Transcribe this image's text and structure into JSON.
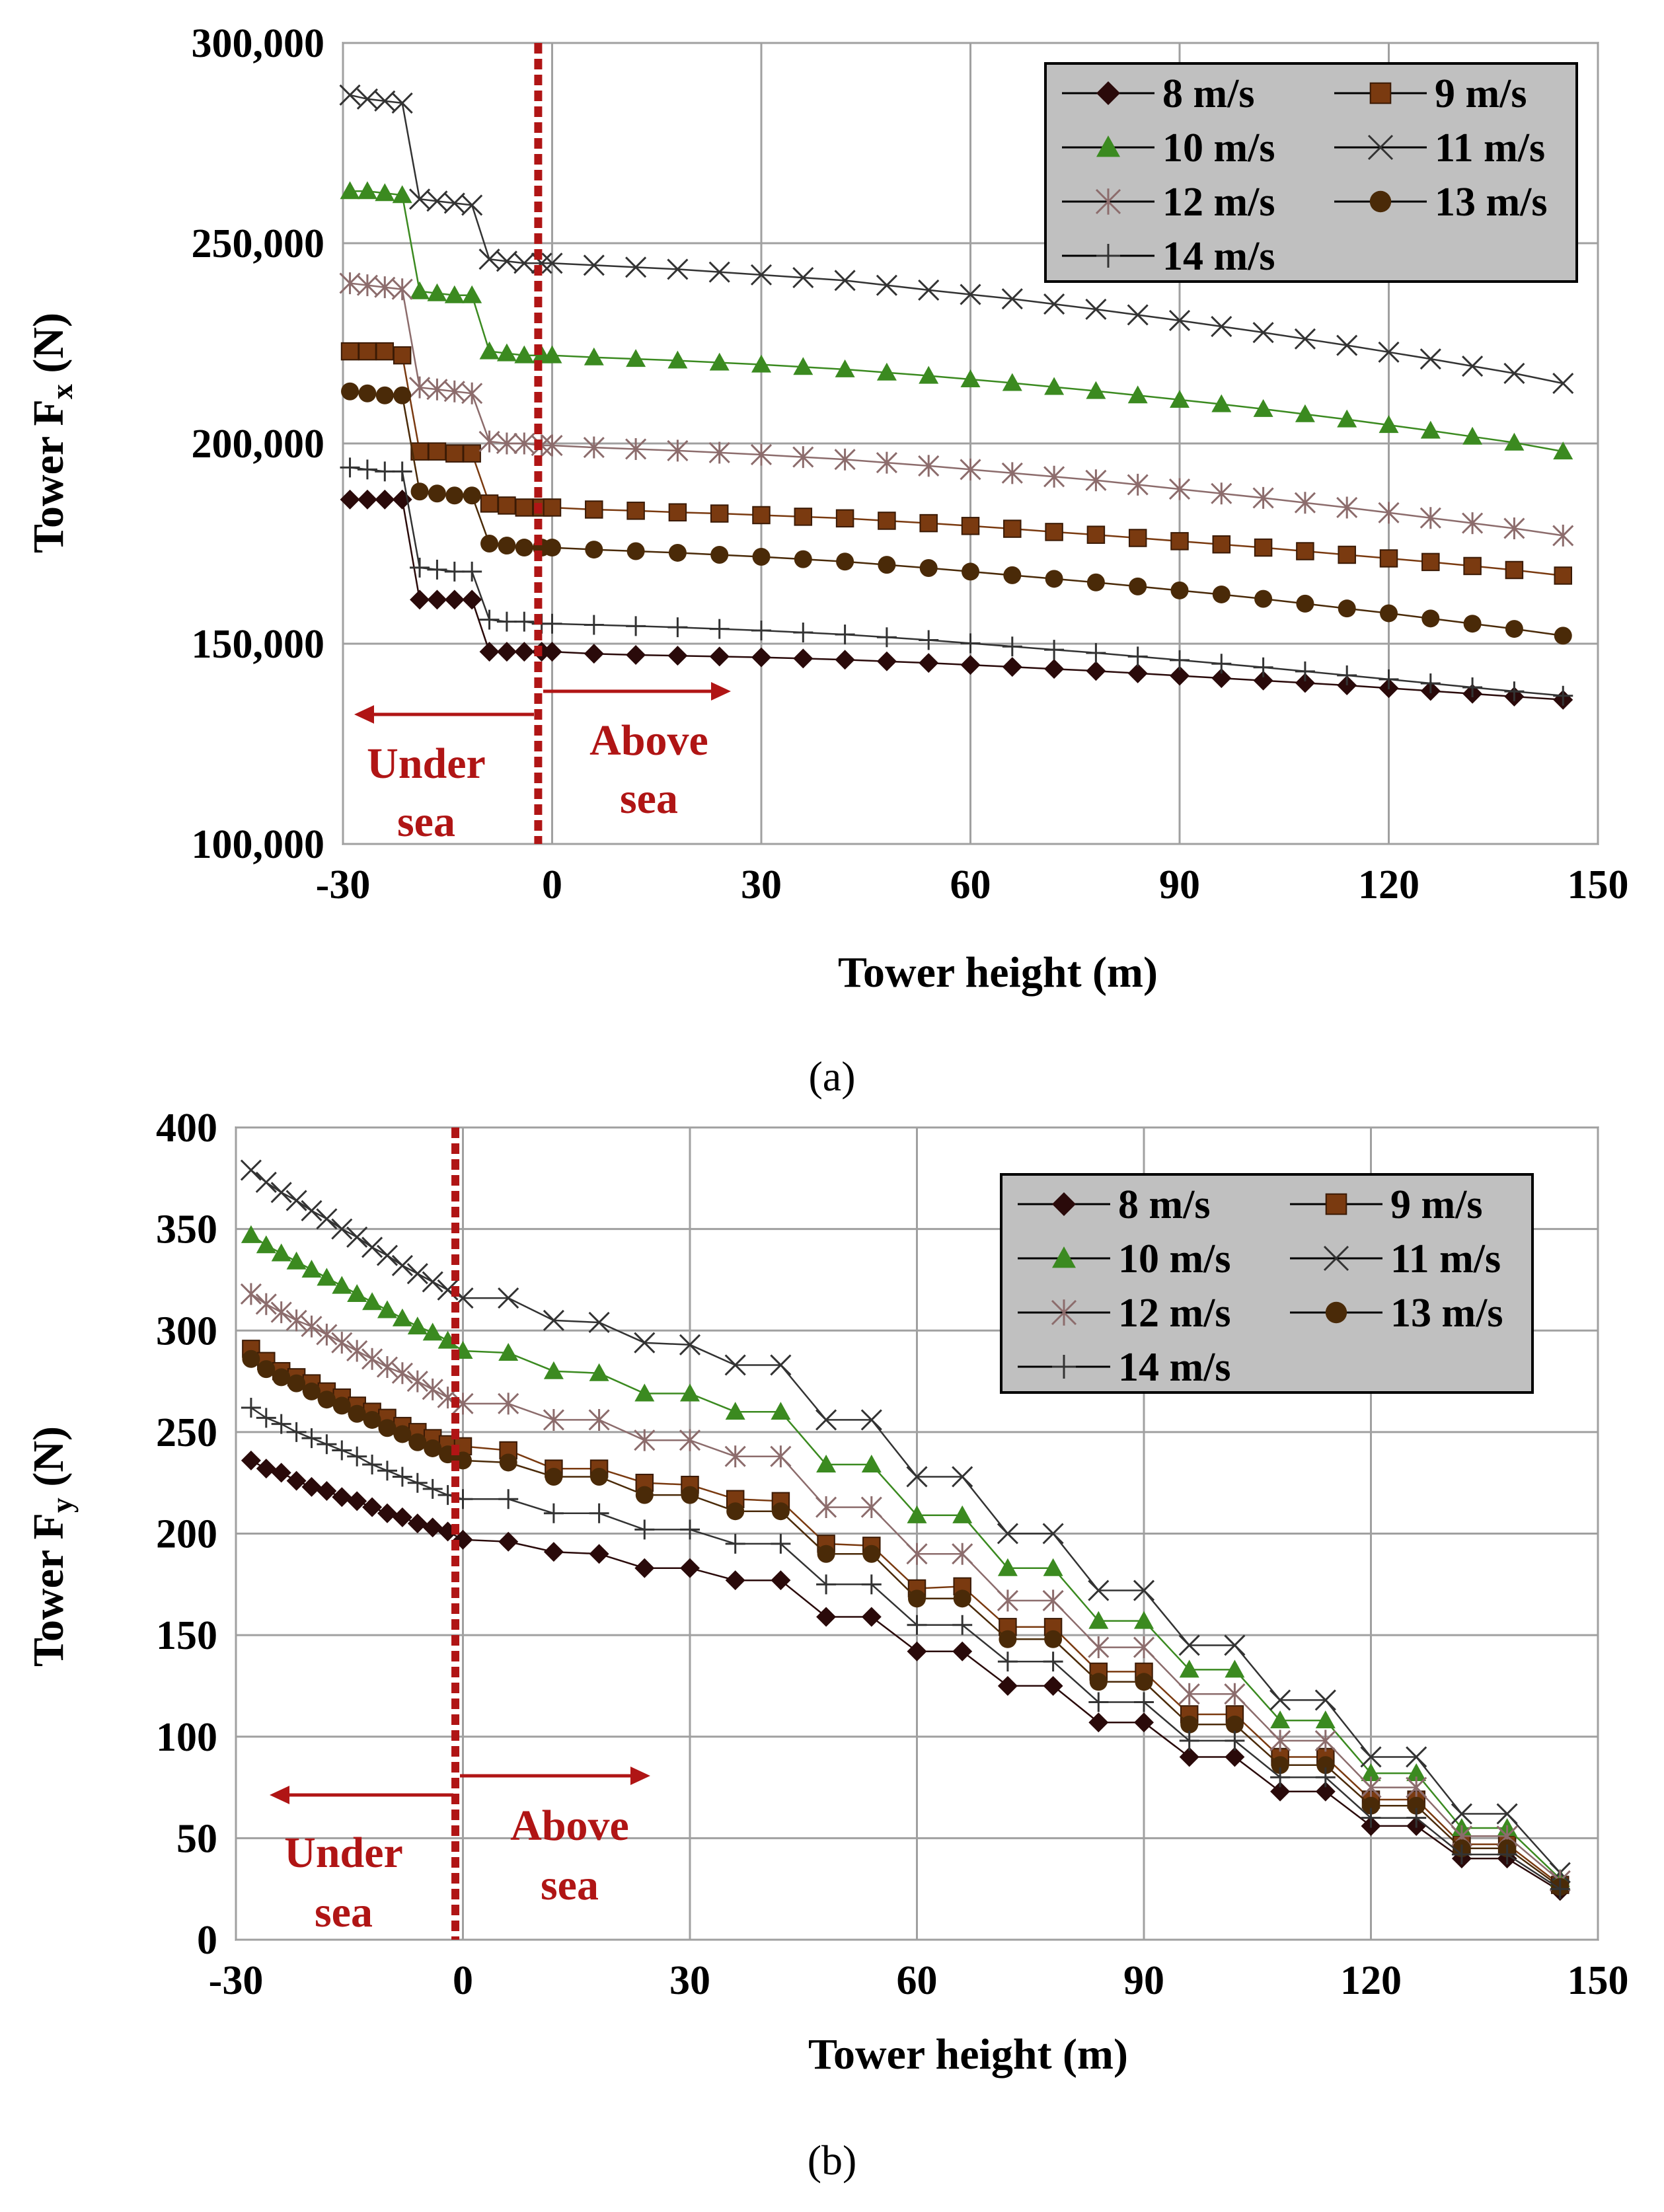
{
  "captions": {
    "a": "(a)",
    "b": "(b)"
  },
  "styles": {
    "8 m/s": {
      "color": "#2a0a0a",
      "marker": "diamond",
      "marker_name": "diamond-marker"
    },
    "9 m/s": {
      "color": "#7a3a10",
      "marker": "square",
      "marker_name": "square-marker"
    },
    "10 m/s": {
      "color": "#3b8a20",
      "marker": "triangle",
      "marker_name": "triangle-marker"
    },
    "11 m/s": {
      "color": "#333333",
      "marker": "x",
      "marker_name": "x-marker"
    },
    "12 m/s": {
      "color": "#8c6c6c",
      "marker": "star",
      "marker_name": "star-marker"
    },
    "13 m/s": {
      "color": "#4a2a08",
      "marker": "circle",
      "marker_name": "circle-marker"
    },
    "14 m/s": {
      "color": "#333333",
      "marker": "plus",
      "marker_name": "plus-marker"
    }
  },
  "chart_data": [
    {
      "id": "a",
      "type": "line",
      "title": "",
      "xlabel": "Tower height (m)",
      "ylabel": "Tower F",
      "ylabel_sub": "x",
      "ylabel_unit": " (N)",
      "xlim": [
        -30,
        150
      ],
      "ylim": [
        100000,
        300000
      ],
      "xticks": [
        -30,
        0,
        30,
        60,
        90,
        120,
        150
      ],
      "xtick_labels": [
        "-30",
        "0",
        "30",
        "60",
        "90",
        "120",
        "150"
      ],
      "yticks": [
        100000,
        150000,
        200000,
        250000,
        300000
      ],
      "ytick_labels": [
        "100,000",
        "150,000",
        "200,000",
        "250,000",
        "300,000"
      ],
      "grid": true,
      "legend_position": "top-right",
      "divider_x": -2,
      "annotations": {
        "under_line1": "Under",
        "under_line2": "sea",
        "above_line1": "Above",
        "above_line2": "sea"
      },
      "x": [
        -29,
        -26.5,
        -24,
        -21.5,
        -19,
        -16.5,
        -14,
        -11.5,
        -9,
        -6.5,
        -4,
        -1.5,
        0,
        6,
        12,
        18,
        24,
        30,
        36,
        42,
        48,
        54,
        60,
        66,
        72,
        78,
        84,
        90,
        96,
        102,
        108,
        114,
        120,
        126,
        132,
        138,
        145
      ],
      "series": [
        {
          "name": "8 m/s",
          "values": [
            186000,
            186000,
            186000,
            186000,
            161000,
            161000,
            161000,
            161000,
            148000,
            148000,
            148000,
            148000,
            148000,
            147500,
            147200,
            147000,
            146800,
            146600,
            146300,
            146000,
            145600,
            145200,
            144700,
            144200,
            143700,
            143200,
            142600,
            142000,
            141400,
            140800,
            140200,
            139600,
            138900,
            138200,
            137500,
            136800,
            136000
          ]
        },
        {
          "name": "9 m/s",
          "values": [
            223000,
            223000,
            223000,
            222000,
            198000,
            198000,
            197500,
            197500,
            185000,
            184500,
            184000,
            184000,
            184000,
            183500,
            183200,
            182800,
            182500,
            182100,
            181700,
            181300,
            180700,
            180100,
            179400,
            178700,
            177900,
            177200,
            176400,
            175600,
            174800,
            174000,
            173100,
            172200,
            171300,
            170400,
            169400,
            168400,
            167000
          ]
        },
        {
          "name": "10 m/s",
          "values": [
            263000,
            263000,
            262500,
            262000,
            238000,
            237500,
            237000,
            237000,
            223000,
            222500,
            222000,
            222000,
            222000,
            221500,
            221100,
            220700,
            220200,
            219700,
            219100,
            218500,
            217700,
            216900,
            216000,
            215100,
            214100,
            213100,
            212000,
            210900,
            209800,
            208600,
            207300,
            206000,
            204600,
            203200,
            201700,
            200200,
            198000
          ]
        },
        {
          "name": "11 m/s",
          "values": [
            287000,
            286000,
            285500,
            285000,
            261000,
            260500,
            260000,
            259500,
            246000,
            245500,
            245000,
            245000,
            245000,
            244500,
            244000,
            243500,
            242800,
            242100,
            241400,
            240700,
            239500,
            238300,
            237200,
            236100,
            234800,
            233500,
            232100,
            230700,
            229200,
            227700,
            226100,
            224500,
            222800,
            221100,
            219300,
            217500,
            215000
          ]
        },
        {
          "name": "12 m/s",
          "values": [
            240000,
            239500,
            239000,
            238500,
            214000,
            213500,
            213000,
            212500,
            200500,
            200000,
            200000,
            199500,
            199500,
            199000,
            198600,
            198200,
            197700,
            197200,
            196600,
            196000,
            195200,
            194400,
            193500,
            192600,
            191700,
            190800,
            189700,
            188600,
            187500,
            186400,
            185200,
            184000,
            182700,
            181400,
            180100,
            178800,
            177000
          ]
        },
        {
          "name": "13 m/s",
          "values": [
            213000,
            212500,
            212000,
            212000,
            188000,
            187500,
            187000,
            187000,
            175000,
            174500,
            174000,
            174000,
            174000,
            173500,
            173100,
            172700,
            172200,
            171700,
            171100,
            170500,
            169700,
            168900,
            168000,
            167100,
            166200,
            165300,
            164300,
            163300,
            162300,
            161200,
            160000,
            158800,
            157600,
            156300,
            155000,
            153700,
            152000
          ]
        },
        {
          "name": "14 m/s",
          "values": [
            194000,
            193500,
            193000,
            193000,
            169000,
            168500,
            168000,
            168000,
            156000,
            155500,
            155500,
            155000,
            155000,
            154700,
            154400,
            154100,
            153700,
            153300,
            152800,
            152300,
            151600,
            150900,
            150100,
            149300,
            148500,
            147700,
            146800,
            145900,
            145000,
            144100,
            143100,
            142100,
            141100,
            140100,
            139100,
            138100,
            137000
          ]
        }
      ]
    },
    {
      "id": "b",
      "type": "line",
      "title": "",
      "xlabel": "Tower height (m)",
      "ylabel": "Tower F",
      "ylabel_sub": "y",
      "ylabel_unit": " (N)",
      "xlim": [
        -30,
        150
      ],
      "ylim": [
        0,
        400
      ],
      "xticks": [
        -30,
        0,
        30,
        60,
        90,
        120,
        150
      ],
      "xtick_labels": [
        "-30",
        "0",
        "30",
        "60",
        "90",
        "120",
        "150"
      ],
      "yticks": [
        0,
        50,
        100,
        150,
        200,
        250,
        300,
        350,
        400
      ],
      "ytick_labels": [
        "0",
        "50",
        "100",
        "150",
        "200",
        "250",
        "300",
        "350",
        "400"
      ],
      "grid": true,
      "legend_position": "top-right",
      "divider_x": -1,
      "annotations": {
        "under_line1": "Under",
        "under_line2": "sea",
        "above_line1": "Above",
        "above_line2": "sea"
      },
      "x": [
        -28,
        -26,
        -24,
        -22,
        -20,
        -18,
        -16,
        -14,
        -12,
        -10,
        -8,
        -6,
        -4,
        -2,
        0,
        6,
        12,
        18,
        24,
        30,
        36,
        42,
        48,
        54,
        60,
        66,
        72,
        78,
        84,
        90,
        96,
        102,
        108,
        114,
        120,
        126,
        132,
        138,
        145
      ],
      "series": [
        {
          "name": "8 m/s",
          "values": [
            236,
            232,
            230,
            226,
            223,
            221,
            218,
            216,
            213,
            210,
            208,
            205,
            203,
            201,
            197,
            196,
            191,
            190,
            183,
            183,
            177,
            177,
            159,
            159,
            142,
            142,
            125,
            125,
            107,
            107,
            90,
            90,
            73,
            73,
            56,
            56,
            40,
            40,
            24
          ]
        },
        {
          "name": "9 m/s",
          "values": [
            291,
            285,
            280,
            277,
            274,
            270,
            267,
            263,
            260,
            257,
            253,
            250,
            247,
            244,
            243,
            241,
            232,
            232,
            225,
            224,
            217,
            216,
            195,
            194,
            173,
            174,
            154,
            154,
            132,
            132,
            111,
            111,
            90,
            90,
            69,
            69,
            47,
            47,
            27
          ]
        },
        {
          "name": "10 m/s",
          "values": [
            347,
            342,
            338,
            334,
            330,
            326,
            322,
            318,
            314,
            310,
            306,
            302,
            299,
            295,
            290,
            289,
            280,
            279,
            269,
            269,
            260,
            260,
            234,
            234,
            209,
            209,
            183,
            183,
            157,
            157,
            133,
            133,
            108,
            108,
            82,
            82,
            55,
            55,
            30
          ]
        },
        {
          "name": "11 m/s",
          "values": [
            379,
            373,
            368,
            364,
            359,
            355,
            350,
            346,
            341,
            337,
            332,
            328,
            324,
            320,
            316,
            316,
            305,
            304,
            294,
            293,
            283,
            283,
            256,
            256,
            228,
            228,
            200,
            200,
            172,
            172,
            145,
            145,
            118,
            118,
            90,
            90,
            62,
            62,
            33
          ]
        },
        {
          "name": "12 m/s",
          "values": [
            318,
            313,
            309,
            305,
            302,
            298,
            294,
            290,
            286,
            282,
            279,
            275,
            271,
            267,
            264,
            264,
            256,
            256,
            246,
            246,
            238,
            238,
            213,
            213,
            190,
            190,
            167,
            167,
            144,
            144,
            121,
            121,
            98,
            98,
            75,
            75,
            51,
            51,
            29
          ]
        },
        {
          "name": "13 m/s",
          "values": [
            286,
            281,
            277,
            274,
            270,
            266,
            263,
            259,
            256,
            252,
            249,
            245,
            242,
            239,
            236,
            235,
            228,
            228,
            219,
            219,
            211,
            211,
            190,
            190,
            168,
            168,
            148,
            148,
            127,
            127,
            106,
            106,
            86,
            86,
            66,
            66,
            45,
            45,
            26
          ]
        },
        {
          "name": "14 m/s",
          "values": [
            262,
            257,
            254,
            250,
            247,
            244,
            241,
            238,
            234,
            231,
            228,
            225,
            222,
            219,
            217,
            217,
            210,
            210,
            202,
            202,
            195,
            195,
            175,
            175,
            155,
            155,
            137,
            137,
            117,
            117,
            98,
            98,
            80,
            80,
            60,
            60,
            42,
            42,
            25
          ]
        }
      ]
    }
  ]
}
